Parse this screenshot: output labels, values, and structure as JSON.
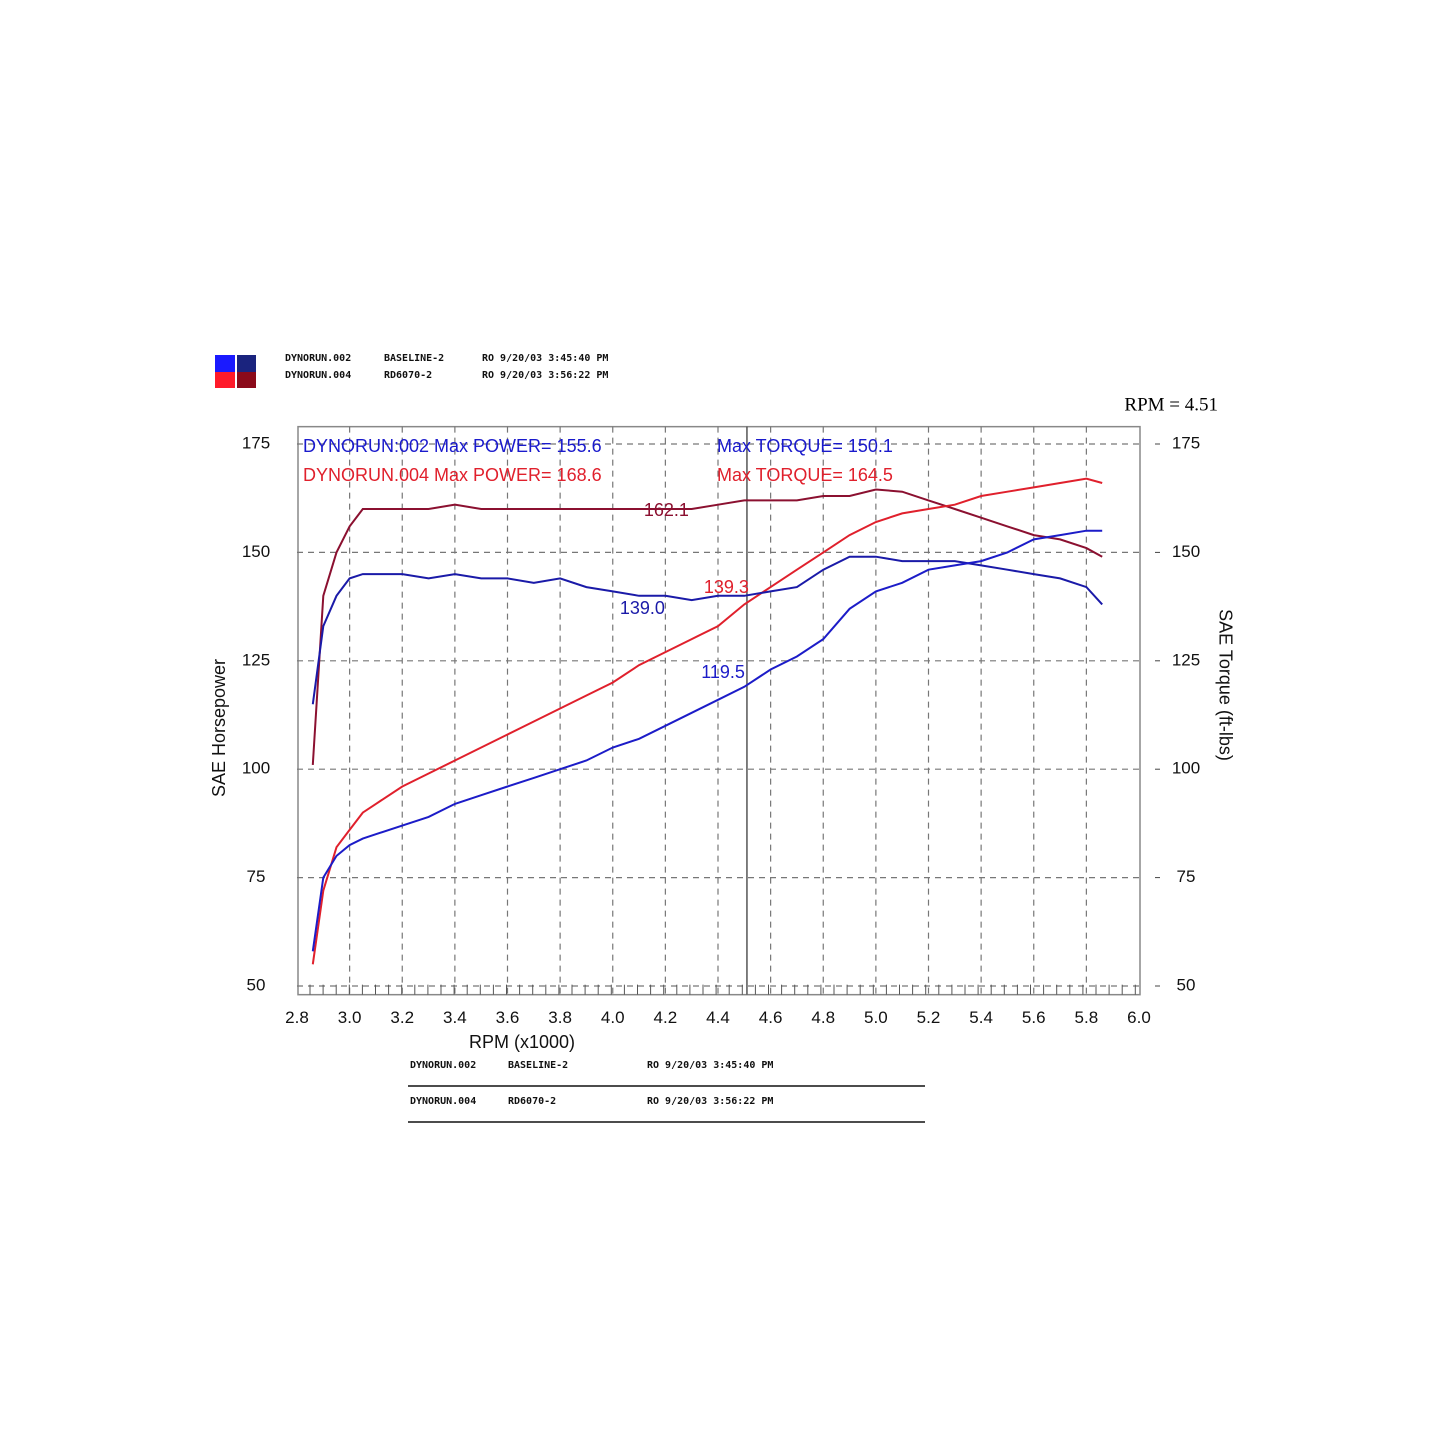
{
  "chart_data": {
    "type": "line",
    "runs": [
      {
        "run": "DYNORUN.002",
        "name": "BASELINE-2",
        "info": "RO 9/20/03 3:45:40 PM"
      },
      {
        "run": "DYNORUN.004",
        "name": "RD6070-2",
        "info": "RO 9/20/03 3:56:22 PM"
      }
    ],
    "cursor": {
      "value": 4.51,
      "label": "RPM = 4.51"
    },
    "stats": [
      {
        "power": "DYNORUN:002 Max POWER= 155.6",
        "torque": "Max TORQUE= 150.1",
        "color": "#1a1acc"
      },
      {
        "power": "DYNORUN.004 Max POWER= 168.6",
        "torque": "Max TORQUE= 164.5",
        "color": "#e0202c"
      }
    ],
    "xlabel": "RPM (x1000)",
    "ylabel": "SAE Horsepower",
    "y2label": "SAE Torque (ft-lbs)",
    "xlim": [
      2.8,
      6.0
    ],
    "xticks": [
      2.8,
      {
        "value": 3,
        "label": "3.0"
      },
      3.2,
      3.4,
      3.6,
      3.8,
      {
        "value": 4,
        "label": "4.0"
      },
      4.2,
      4.4,
      4.6,
      4.8,
      {
        "value": 5,
        "label": "5.0"
      },
      5.2,
      5.4,
      5.6,
      5.8,
      {
        "value": 6,
        "label": "6.0"
      }
    ],
    "ylim": [
      48,
      179
    ],
    "yticks": [
      50,
      75,
      100,
      125,
      150,
      175
    ],
    "y2lim": [
      48,
      179
    ],
    "y2ticks": [
      50,
      75,
      100,
      125,
      150,
      175
    ],
    "grid": true,
    "x": [
      2.86,
      2.9,
      2.95,
      3.0,
      3.05,
      3.1,
      3.2,
      3.3,
      3.4,
      3.5,
      3.6,
      3.7,
      3.8,
      3.9,
      4.0,
      4.1,
      4.2,
      4.3,
      4.4,
      4.5,
      4.6,
      4.7,
      4.8,
      4.9,
      5.0,
      5.1,
      5.2,
      5.3,
      5.4,
      5.5,
      5.6,
      5.7,
      5.8,
      5.86
    ],
    "series": [
      {
        "color": "#8b1030",
        "axis": "y2",
        "cursor_label": "162.1",
        "values": [
          101,
          140,
          150,
          156,
          160,
          160,
          160,
          160,
          161,
          160,
          160,
          160,
          160,
          160,
          160,
          160,
          160,
          160,
          161,
          162,
          162,
          162,
          163,
          163,
          164.5,
          164,
          162,
          160,
          158,
          156,
          154,
          153,
          151,
          149
        ]
      },
      {
        "color": "#e0202c",
        "cursor_label": "139.3",
        "values": [
          55,
          72,
          82,
          86,
          90,
          92,
          96,
          99,
          102,
          105,
          108,
          111,
          114,
          117,
          120,
          124,
          127,
          130,
          133,
          138,
          142,
          146,
          150,
          154,
          157,
          159,
          160,
          161,
          163,
          164,
          165,
          166,
          167,
          166
        ]
      },
      {
        "color": "#1a1aa8",
        "axis": "y2",
        "cursor_label": "139.0",
        "values": [
          115,
          133,
          140,
          144,
          145,
          145,
          145,
          144,
          145,
          144,
          144,
          143,
          144,
          142,
          141,
          140,
          140,
          139,
          140,
          140,
          141,
          142,
          146,
          149,
          149,
          148,
          148,
          148,
          147,
          146,
          145,
          144,
          142,
          138
        ]
      },
      {
        "color": "#1c1cc8",
        "cursor_label": "119.5",
        "values": [
          58,
          75,
          80,
          82.5,
          84,
          85,
          87,
          89,
          92,
          94,
          96,
          98,
          100,
          102,
          105,
          107,
          110,
          113,
          116,
          119,
          123,
          126,
          130,
          137,
          141,
          143,
          146,
          147,
          148,
          150,
          153,
          154,
          155,
          155
        ]
      }
    ]
  }
}
